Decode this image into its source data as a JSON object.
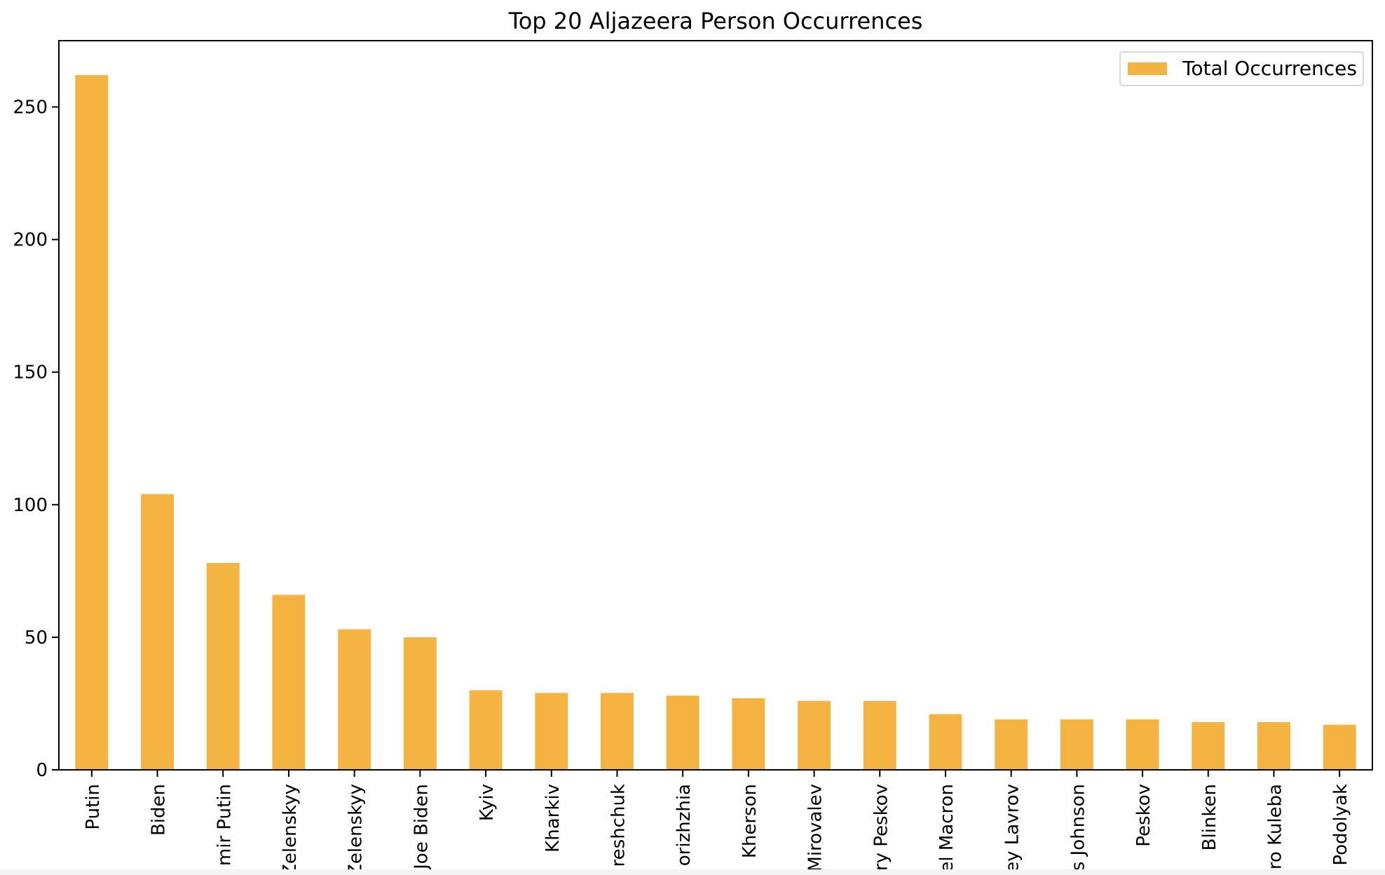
{
  "chart_data": {
    "type": "bar",
    "title": "Top 20 Aljazeera Person Occurrences",
    "xlabel": "",
    "ylabel": "",
    "categories": [
      "Putin",
      "Biden",
      "mir Putin",
      "Zelenskyy",
      "Zelenskyy",
      "Joe Biden",
      "Kyiv",
      "Kharkiv",
      "reshchuk",
      "orizhzhia",
      "Kherson",
      "Mirovalev",
      "ry Peskov",
      "el Macron",
      "ey Lavrov",
      "s Johnson",
      "Peskov",
      "Blinken",
      "ro Kuleba",
      "Podolyak"
    ],
    "series": [
      {
        "name": "Total Occurrences",
        "color": "#F5B441",
        "values": [
          262,
          104,
          78,
          66,
          53,
          50,
          30,
          29,
          29,
          28,
          27,
          26,
          26,
          21,
          19,
          19,
          19,
          18,
          18,
          17
        ]
      }
    ],
    "ylim": [
      0,
      275
    ],
    "yticks": [
      0,
      50,
      100,
      150,
      200,
      250
    ],
    "legend_position": "top-right",
    "grid": false
  }
}
